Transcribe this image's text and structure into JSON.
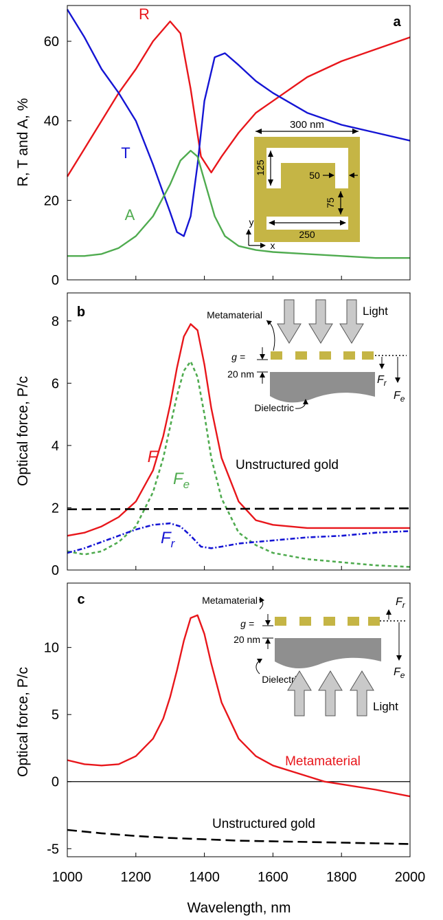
{
  "x_axis": {
    "label": "Wavelength, nm",
    "range": [
      1000,
      2000
    ],
    "ticks": [
      "1000",
      "1200",
      "1400",
      "1600",
      "1800",
      "2000"
    ]
  },
  "chart_data": [
    {
      "panel": "a",
      "type": "line",
      "ylabel": "R, T and A, %",
      "ylim": [
        0,
        69
      ],
      "yticks": [
        "0",
        "20",
        "40",
        "60"
      ],
      "series": [
        {
          "name": "R",
          "color": "#e8161b",
          "style": "solid",
          "x": [
            1000,
            1050,
            1100,
            1150,
            1200,
            1250,
            1300,
            1330,
            1360,
            1390,
            1420,
            1450,
            1500,
            1550,
            1600,
            1700,
            1800,
            1900,
            2000
          ],
          "y": [
            26,
            33,
            40,
            47,
            53,
            60,
            65,
            62,
            48,
            31,
            27,
            31,
            37,
            42,
            45,
            51,
            55,
            58,
            61
          ]
        },
        {
          "name": "T",
          "color": "#1515d4",
          "style": "solid",
          "x": [
            1000,
            1050,
            1100,
            1150,
            1200,
            1250,
            1300,
            1320,
            1340,
            1360,
            1380,
            1400,
            1430,
            1460,
            1500,
            1550,
            1600,
            1700,
            1800,
            1900,
            2000
          ],
          "y": [
            68,
            61,
            53,
            47,
            40,
            29,
            17,
            12,
            11,
            16,
            29,
            45,
            56,
            57,
            54,
            50,
            47,
            42,
            39,
            37,
            35
          ]
        },
        {
          "name": "A",
          "color": "#4fab4f",
          "style": "solid",
          "x": [
            1000,
            1050,
            1100,
            1150,
            1200,
            1250,
            1300,
            1330,
            1360,
            1380,
            1400,
            1430,
            1460,
            1500,
            1550,
            1600,
            1700,
            1800,
            1900,
            2000
          ],
          "y": [
            6,
            6,
            6.5,
            8,
            11,
            16,
            24,
            30,
            32.5,
            31,
            25,
            16,
            11,
            8.5,
            7.5,
            7,
            6.5,
            6,
            5.5,
            5.5
          ]
        }
      ],
      "inset": {
        "width_label": "300 nm",
        "gap_label": "125",
        "notch_label": "50",
        "bottom_gap_label": "75",
        "bar_label": "250",
        "axis_y": "y",
        "axis_x": "x"
      }
    },
    {
      "panel": "b",
      "type": "line",
      "ylabel": "Optical force, P/c",
      "ylim": [
        0,
        8.9
      ],
      "yticks": [
        "0",
        "2",
        "4",
        "6",
        "8"
      ],
      "series": [
        {
          "name": "F",
          "color": "#e8161b",
          "style": "solid",
          "x": [
            1000,
            1050,
            1100,
            1150,
            1200,
            1250,
            1280,
            1300,
            1320,
            1340,
            1360,
            1380,
            1400,
            1420,
            1450,
            1500,
            1550,
            1600,
            1700,
            1800,
            1900,
            2000
          ],
          "y": [
            1.1,
            1.2,
            1.4,
            1.7,
            2.2,
            3.2,
            4.3,
            5.3,
            6.5,
            7.5,
            7.9,
            7.7,
            6.6,
            5.2,
            3.6,
            2.2,
            1.6,
            1.45,
            1.35,
            1.35,
            1.35,
            1.35
          ]
        },
        {
          "name": "Fe",
          "color": "#4fab4f",
          "style": "dashed",
          "x": [
            1000,
            1050,
            1100,
            1150,
            1200,
            1250,
            1280,
            1300,
            1320,
            1340,
            1360,
            1380,
            1400,
            1420,
            1450,
            1500,
            1550,
            1600,
            1700,
            1800,
            1900,
            2000
          ],
          "y": [
            0.6,
            0.5,
            0.6,
            0.9,
            1.4,
            2.5,
            3.6,
            4.6,
            5.6,
            6.4,
            6.7,
            6.2,
            5.0,
            3.6,
            2.3,
            1.2,
            0.8,
            0.55,
            0.35,
            0.25,
            0.15,
            0.1
          ]
        },
        {
          "name": "Fr",
          "color": "#1515d4",
          "style": "dashdot",
          "x": [
            1000,
            1050,
            1100,
            1150,
            1200,
            1250,
            1300,
            1330,
            1360,
            1390,
            1420,
            1450,
            1500,
            1550,
            1600,
            1700,
            1800,
            1900,
            2000
          ],
          "y": [
            0.55,
            0.7,
            0.9,
            1.1,
            1.3,
            1.45,
            1.5,
            1.4,
            1.1,
            0.75,
            0.7,
            0.75,
            0.85,
            0.9,
            0.95,
            1.05,
            1.1,
            1.2,
            1.25
          ]
        },
        {
          "name": "Unstructured gold",
          "color": "#000000",
          "style": "longdash",
          "x": [
            1000,
            2000
          ],
          "y": [
            1.95,
            1.98
          ]
        }
      ],
      "inset": {
        "metamaterial": "Metamaterial",
        "light": "Light",
        "gap_top": "g =",
        "gap_bottom": "20 nm",
        "dielectric": "Dielectric"
      }
    },
    {
      "panel": "c",
      "type": "line",
      "ylabel": "Optical force, P/c",
      "ylim": [
        -5.6,
        14.8
      ],
      "yticks": [
        "-5",
        "0",
        "5",
        "10"
      ],
      "series": [
        {
          "name": "Metamaterial",
          "color": "#e8161b",
          "style": "solid",
          "x": [
            1000,
            1050,
            1100,
            1150,
            1200,
            1250,
            1280,
            1300,
            1320,
            1340,
            1360,
            1380,
            1400,
            1420,
            1450,
            1500,
            1550,
            1600,
            1700,
            1750,
            1800,
            1900,
            2000
          ],
          "y": [
            1.6,
            1.3,
            1.2,
            1.3,
            1.9,
            3.2,
            4.7,
            6.3,
            8.3,
            10.5,
            12.2,
            12.4,
            11.0,
            8.8,
            5.9,
            3.2,
            1.9,
            1.2,
            0.4,
            0.0,
            -0.2,
            -0.6,
            -1.1
          ]
        },
        {
          "name": "Unstructured gold",
          "color": "#000000",
          "style": "longdash",
          "x": [
            1000,
            1100,
            1200,
            1300,
            1400,
            1500,
            1600,
            1700,
            1800,
            1900,
            2000
          ],
          "y": [
            -3.6,
            -3.85,
            -4.05,
            -4.2,
            -4.3,
            -4.4,
            -4.45,
            -4.5,
            -4.55,
            -4.6,
            -4.65
          ]
        }
      ],
      "inset": {
        "metamaterial": "Metamaterial",
        "light": "Light",
        "gap_top": "g =",
        "gap_bottom": "20 nm",
        "dielectric": "Dielectric"
      }
    }
  ],
  "panel_b_labels": {
    "F": "F",
    "Fe_main": "F",
    "Fe_sub": "e",
    "Fr_main": "F",
    "Fr_sub": "r",
    "ungold": "Unstructured gold"
  },
  "panel_c_labels": {
    "meta": "Metamaterial",
    "ungold": "Unstructured gold"
  },
  "inset_force_labels": {
    "Fr_main": "F",
    "Fr_sub": "r",
    "Fe_main": "F",
    "Fe_sub": "e"
  },
  "colors": {
    "gold": "#c5b545",
    "dielectric": "#8f8f8f",
    "arrow": "#c9c9c9"
  }
}
